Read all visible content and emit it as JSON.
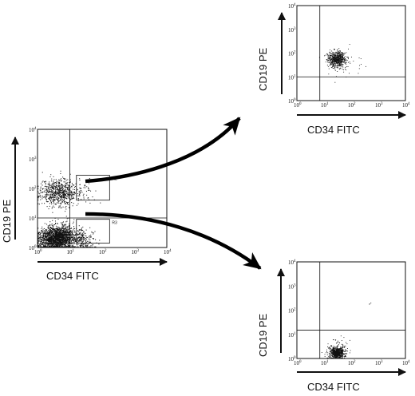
{
  "figure": {
    "ink": "#111111",
    "arrow_color": "#000000"
  },
  "chart_data": [
    {
      "type": "scatter",
      "id": "source",
      "xlabel": "CD34 FITC",
      "ylabel": "CD19 PE",
      "x_scale": "log",
      "y_scale": "log",
      "xlim": [
        1,
        10000
      ],
      "ylim": [
        1,
        10000
      ],
      "x_ticks": [
        "10",
        "10",
        "10",
        "10",
        "10"
      ],
      "x_tick_exps": [
        "0",
        "1",
        "2",
        "3",
        "4"
      ],
      "y_ticks": [
        "10",
        "10",
        "10",
        "10",
        "10"
      ],
      "y_tick_exps": [
        "0",
        "1",
        "2",
        "3",
        "4"
      ],
      "quadrant": {
        "x": 10,
        "y": 10
      },
      "gates": [
        {
          "label": "R2",
          "x": [
            16,
            170
          ],
          "y": [
            40,
            280
          ]
        },
        {
          "label": "R3",
          "x": [
            16,
            170
          ],
          "y": [
            1.4,
            9
          ]
        }
      ],
      "populations": [
        {
          "cx": 4.5,
          "cy": 75,
          "sx": 0.28,
          "sy": 0.23,
          "n": 700,
          "seed": 11
        },
        {
          "cx": 4.5,
          "cy": 2.2,
          "sx": 0.25,
          "sy": 0.2,
          "n": 1500,
          "seed": 23
        },
        {
          "cx": 2.5,
          "cy": 1.6,
          "sx": 0.25,
          "sy": 0.18,
          "n": 500,
          "seed": 37
        },
        {
          "cx": 25,
          "cy": 1.8,
          "sx": 0.2,
          "sy": 0.18,
          "n": 220,
          "seed": 41
        },
        {
          "cx": 30,
          "cy": 80,
          "sx": 0.2,
          "sy": 0.2,
          "n": 40,
          "seed": 53
        }
      ]
    },
    {
      "type": "scatter",
      "id": "gated-top",
      "xlabel": "CD34 FITC",
      "ylabel": "CD19 PE",
      "x_scale": "log",
      "y_scale": "log",
      "xlim": [
        1,
        10000
      ],
      "ylim": [
        1,
        10000
      ],
      "x_ticks": [
        "10",
        "10",
        "10",
        "10",
        "10"
      ],
      "x_tick_exps": [
        "0",
        "1",
        "2",
        "3",
        "4"
      ],
      "y_ticks": [
        "10",
        "10",
        "10",
        "10",
        "10"
      ],
      "y_tick_exps": [
        "0",
        "1",
        "2",
        "3",
        "4"
      ],
      "quadrant": {
        "x": 7,
        "y": 10
      },
      "gates": [],
      "populations": [
        {
          "cx": 30,
          "cy": 55,
          "sx": 0.16,
          "sy": 0.16,
          "n": 650,
          "seed": 61
        },
        {
          "cx": 60,
          "cy": 30,
          "sx": 0.35,
          "sy": 0.35,
          "n": 40,
          "seed": 67
        }
      ]
    },
    {
      "type": "scatter",
      "id": "gated-bottom",
      "xlabel": "CD34 FITC",
      "ylabel": "CD19 PE",
      "x_scale": "log",
      "y_scale": "log",
      "xlim": [
        1,
        10000
      ],
      "ylim": [
        1,
        10000
      ],
      "x_ticks": [
        "10",
        "10",
        "10",
        "10",
        "10"
      ],
      "x_tick_exps": [
        "0",
        "1",
        "2",
        "3",
        "4"
      ],
      "y_ticks": [
        "10",
        "10",
        "10",
        "10",
        "10"
      ],
      "y_tick_exps": [
        "0",
        "1",
        "2",
        "3",
        "4"
      ],
      "quadrant": {
        "x": 7,
        "y": 15
      },
      "gates": [],
      "populations": [
        {
          "cx": 30,
          "cy": 1.7,
          "sx": 0.14,
          "sy": 0.12,
          "n": 700,
          "seed": 71
        },
        {
          "cx": 35,
          "cy": 3.0,
          "sx": 0.2,
          "sy": 0.22,
          "n": 60,
          "seed": 79
        },
        {
          "cx": 500,
          "cy": 200,
          "sx": 0.05,
          "sy": 0.05,
          "n": 3,
          "seed": 83
        }
      ]
    }
  ]
}
